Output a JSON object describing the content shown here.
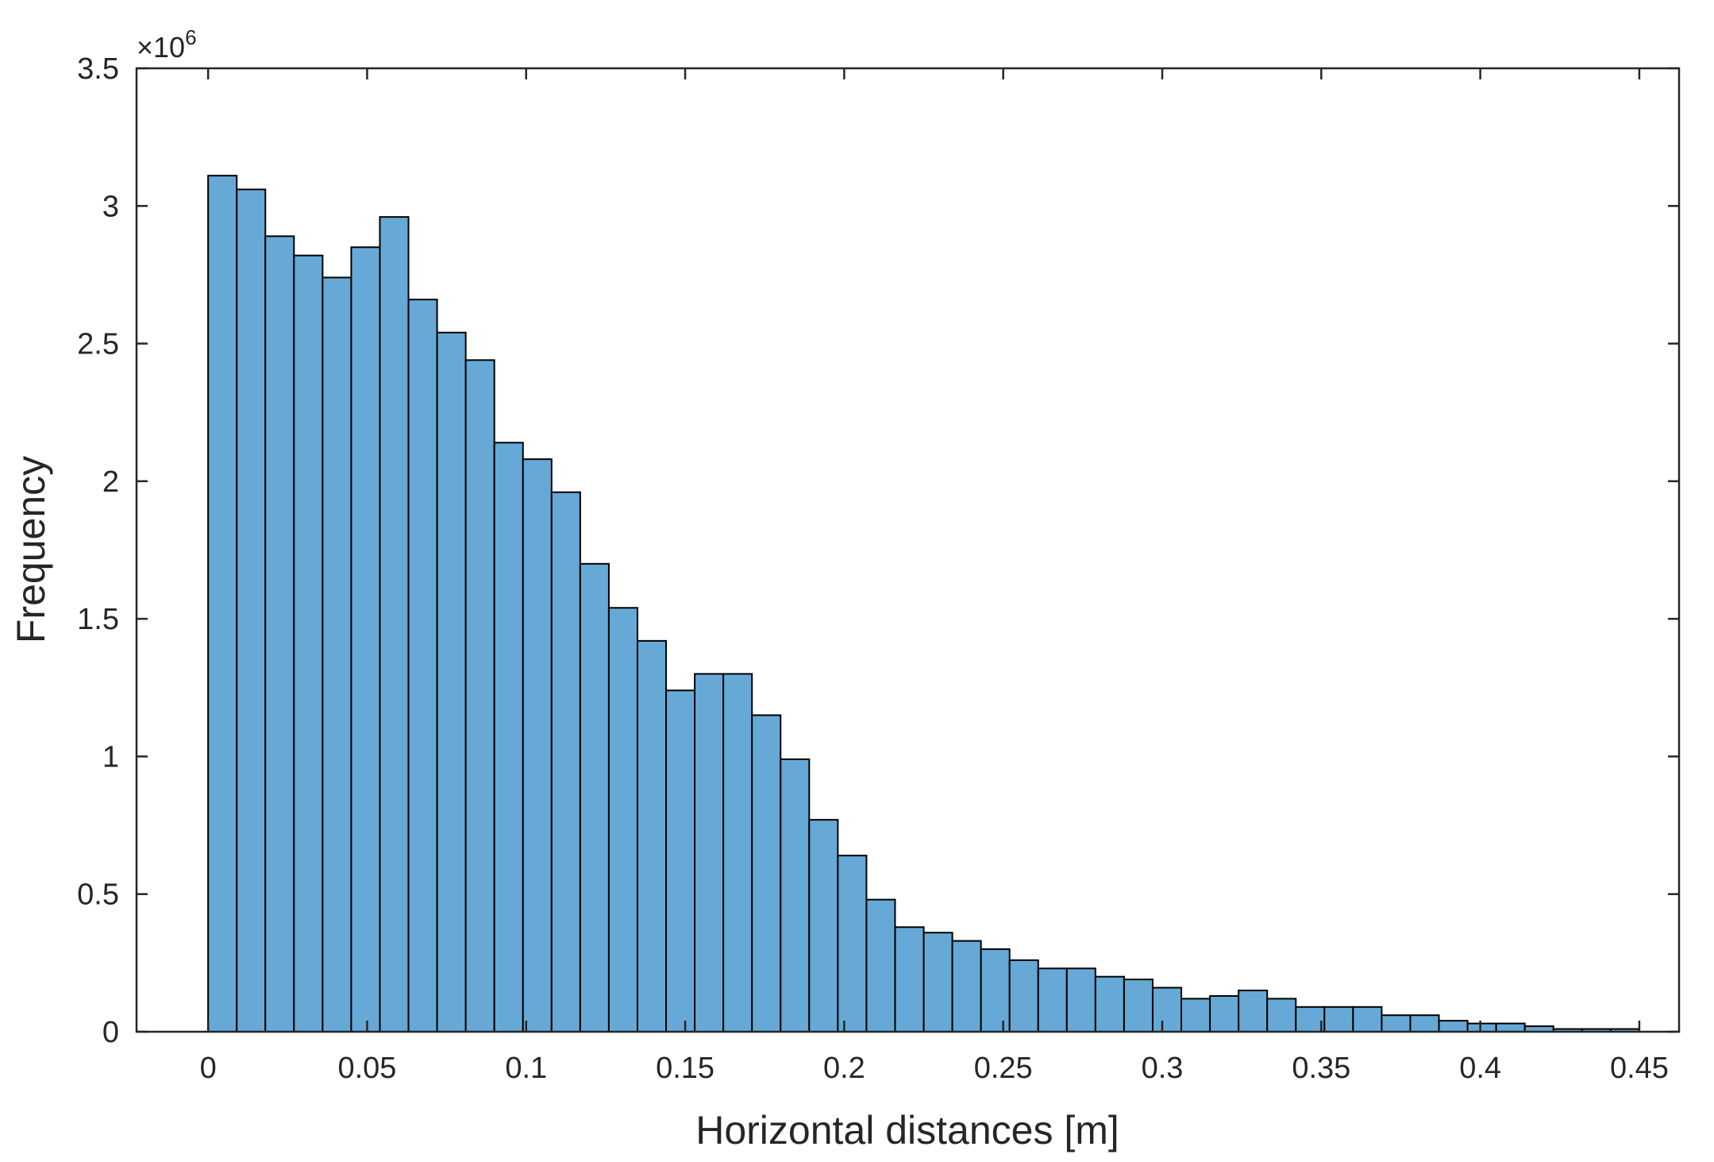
{
  "chart_data": {
    "type": "bar",
    "xlabel": "Horizontal distances [m]",
    "ylabel": "Frequency",
    "y_exponent_base": "×10",
    "y_exponent_power": "6",
    "xlim": [
      -0.0225,
      0.4625
    ],
    "ylim": [
      0,
      3.5
    ],
    "xticks": [
      "0",
      "0.05",
      "0.1",
      "0.15",
      "0.2",
      "0.25",
      "0.3",
      "0.35",
      "0.4",
      "0.45"
    ],
    "xtick_values": [
      0,
      0.05,
      0.1,
      0.15,
      0.2,
      0.25,
      0.3,
      0.35,
      0.4,
      0.45
    ],
    "yticks": [
      "0",
      "0.5",
      "1",
      "1.5",
      "2",
      "2.5",
      "3",
      "3.5"
    ],
    "ytick_values": [
      0,
      0.5,
      1,
      1.5,
      2,
      2.5,
      3,
      3.5
    ],
    "bin_start": 0.0,
    "bin_width": 0.009,
    "values": [
      3.11,
      3.06,
      2.89,
      2.82,
      2.74,
      2.85,
      2.96,
      2.66,
      2.54,
      2.44,
      2.14,
      2.08,
      1.96,
      1.7,
      1.54,
      1.42,
      1.24,
      1.3,
      1.3,
      1.15,
      0.99,
      0.77,
      0.64,
      0.48,
      0.38,
      0.36,
      0.33,
      0.3,
      0.26,
      0.23,
      0.23,
      0.2,
      0.19,
      0.16,
      0.12,
      0.13,
      0.15,
      0.12,
      0.09,
      0.09,
      0.09,
      0.06,
      0.06,
      0.04,
      0.03,
      0.03,
      0.02,
      0.01,
      0.01,
      0.01
    ],
    "grid": false,
    "colors": {
      "bar_fill": "#66a9d6",
      "bar_edge": "#000000",
      "axes": "#262626"
    }
  }
}
